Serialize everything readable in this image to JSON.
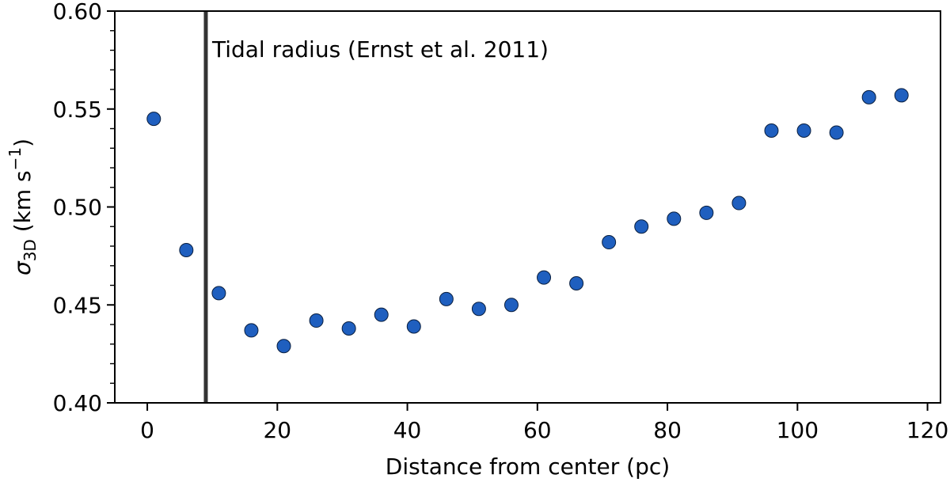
{
  "chart_data": {
    "type": "scatter",
    "xlabel": "Distance from center (pc)",
    "ylabel": "σ3D (km s−1)",
    "ylabel_parts": {
      "sigma": "σ",
      "sub": "3D",
      "unit_open": " (km s",
      "exp": "−1",
      "unit_close": ")"
    },
    "xlim": [
      -5,
      122
    ],
    "ylim": [
      0.4,
      0.6
    ],
    "xticks": [
      0,
      20,
      40,
      60,
      80,
      100,
      120
    ],
    "yticks": [
      0.4,
      0.45,
      0.5,
      0.55,
      0.6
    ],
    "ytick_labels": [
      "0.40",
      "0.45",
      "0.50",
      "0.55",
      "0.60"
    ],
    "marker_color": "#1f5fbf",
    "marker_edge": "#0a1f3f",
    "vline": {
      "x": 9,
      "color": "#333333",
      "label": "Tidal radius (Ernst et al. 2011)"
    },
    "points": [
      {
        "x": 1,
        "y": 0.545
      },
      {
        "x": 6,
        "y": 0.478
      },
      {
        "x": 11,
        "y": 0.456
      },
      {
        "x": 16,
        "y": 0.437
      },
      {
        "x": 21,
        "y": 0.429
      },
      {
        "x": 26,
        "y": 0.442
      },
      {
        "x": 31,
        "y": 0.438
      },
      {
        "x": 36,
        "y": 0.445
      },
      {
        "x": 41,
        "y": 0.439
      },
      {
        "x": 46,
        "y": 0.453
      },
      {
        "x": 51,
        "y": 0.448
      },
      {
        "x": 56,
        "y": 0.45
      },
      {
        "x": 61,
        "y": 0.464
      },
      {
        "x": 66,
        "y": 0.461
      },
      {
        "x": 71,
        "y": 0.482
      },
      {
        "x": 76,
        "y": 0.49
      },
      {
        "x": 81,
        "y": 0.494
      },
      {
        "x": 86,
        "y": 0.497
      },
      {
        "x": 91,
        "y": 0.502
      },
      {
        "x": 96,
        "y": 0.539
      },
      {
        "x": 101,
        "y": 0.539
      },
      {
        "x": 106,
        "y": 0.538
      },
      {
        "x": 111,
        "y": 0.556
      },
      {
        "x": 116,
        "y": 0.557
      }
    ]
  }
}
